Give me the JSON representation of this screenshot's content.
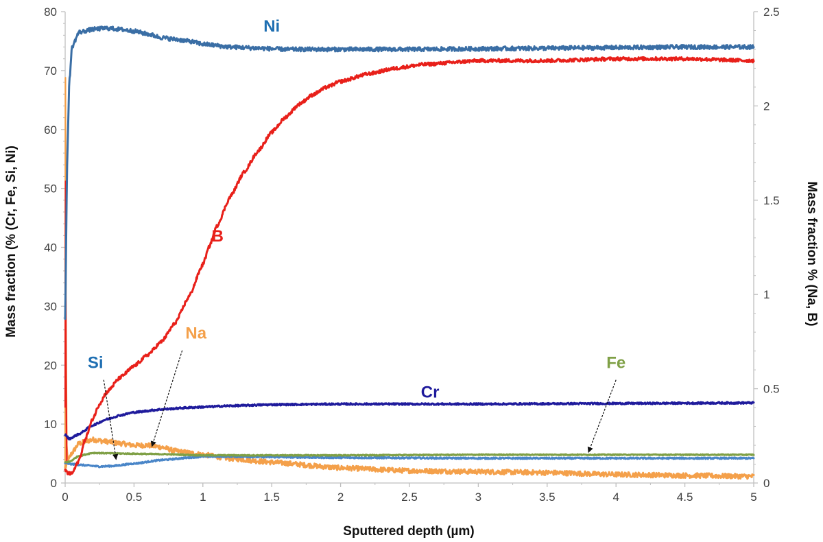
{
  "chart_data": {
    "type": "line",
    "xlabel": "Sputtered depth (µm)",
    "ylabel_left": "Mass fraction (% (Cr, Fe, Si, Ni)",
    "ylabel_right": "Mass fraction % (Na, B)",
    "xlim": [
      0,
      5
    ],
    "ylim_left": [
      0,
      80
    ],
    "ylim_right": [
      0,
      2.5
    ],
    "xticks": [
      "0",
      "0.5",
      "1",
      "1.5",
      "2",
      "2.5",
      "3",
      "3.5",
      "4",
      "4.5",
      "5"
    ],
    "yticks_left": [
      "0",
      "10",
      "20",
      "30",
      "40",
      "50",
      "60",
      "70",
      "80"
    ],
    "yticks_right": [
      "0",
      "0.5",
      "1",
      "1.5",
      "2",
      "2.5"
    ],
    "grid": false,
    "series": [
      {
        "name": "Ni",
        "axis": "left",
        "color": "#3A6EA5",
        "noise": 0.35,
        "points": [
          [
            0,
            28
          ],
          [
            0.015,
            55
          ],
          [
            0.03,
            68
          ],
          [
            0.05,
            74
          ],
          [
            0.1,
            76.5
          ],
          [
            0.2,
            77
          ],
          [
            0.3,
            77.2
          ],
          [
            0.4,
            77
          ],
          [
            0.5,
            76.7
          ],
          [
            0.6,
            76.2
          ],
          [
            0.7,
            75.6
          ],
          [
            0.8,
            75.3
          ],
          [
            0.9,
            75
          ],
          [
            1.0,
            74.5
          ],
          [
            1.2,
            74
          ],
          [
            1.4,
            73.8
          ],
          [
            1.6,
            73.6
          ],
          [
            2.0,
            73.6
          ],
          [
            2.5,
            73.6
          ],
          [
            3.0,
            73.7
          ],
          [
            3.5,
            73.8
          ],
          [
            4.0,
            73.9
          ],
          [
            4.5,
            74
          ],
          [
            5.0,
            74
          ]
        ]
      },
      {
        "name": "B",
        "axis": "right",
        "color": "#E8201A",
        "noise": 0.009,
        "points": [
          [
            0.0,
            0.07
          ],
          [
            0.02,
            0.05
          ],
          [
            0.05,
            0.05
          ],
          [
            0.1,
            0.12
          ],
          [
            0.15,
            0.24
          ],
          [
            0.2,
            0.34
          ],
          [
            0.25,
            0.42
          ],
          [
            0.3,
            0.48
          ],
          [
            0.4,
            0.56
          ],
          [
            0.5,
            0.62
          ],
          [
            0.6,
            0.68
          ],
          [
            0.7,
            0.75
          ],
          [
            0.8,
            0.85
          ],
          [
            0.9,
            0.99
          ],
          [
            1.0,
            1.16
          ],
          [
            1.05,
            1.26
          ],
          [
            1.1,
            1.36
          ],
          [
            1.2,
            1.52
          ],
          [
            1.3,
            1.65
          ],
          [
            1.4,
            1.76
          ],
          [
            1.5,
            1.86
          ],
          [
            1.6,
            1.94
          ],
          [
            1.7,
            2.01
          ],
          [
            1.8,
            2.06
          ],
          [
            1.9,
            2.1
          ],
          [
            2.0,
            2.13
          ],
          [
            2.2,
            2.17
          ],
          [
            2.4,
            2.2
          ],
          [
            2.6,
            2.22
          ],
          [
            3.0,
            2.24
          ],
          [
            3.5,
            2.24
          ],
          [
            4.0,
            2.25
          ],
          [
            4.5,
            2.25
          ],
          [
            5.0,
            2.24
          ]
        ]
      },
      {
        "name": "Cr",
        "axis": "left",
        "color": "#1F1B9C",
        "noise": 0.15,
        "points": [
          [
            0.0,
            8.2
          ],
          [
            0.03,
            7.5
          ],
          [
            0.1,
            8.3
          ],
          [
            0.2,
            9.8
          ],
          [
            0.3,
            10.8
          ],
          [
            0.4,
            11.5
          ],
          [
            0.5,
            12
          ],
          [
            0.7,
            12.5
          ],
          [
            0.9,
            12.8
          ],
          [
            1.0,
            12.9
          ],
          [
            1.2,
            13.1
          ],
          [
            1.5,
            13.3
          ],
          [
            2.0,
            13.4
          ],
          [
            3.0,
            13.4
          ],
          [
            4.0,
            13.5
          ],
          [
            5.0,
            13.6
          ]
        ]
      },
      {
        "name": "Fe",
        "axis": "left",
        "color": "#7FA046",
        "noise": 0.08,
        "points": [
          [
            0.0,
            3.5
          ],
          [
            0.03,
            3.6
          ],
          [
            0.1,
            4.6
          ],
          [
            0.2,
            5.1
          ],
          [
            0.4,
            5.0
          ],
          [
            0.7,
            4.9
          ],
          [
            1.0,
            4.7
          ],
          [
            2.0,
            4.7
          ],
          [
            3.0,
            4.8
          ],
          [
            4.0,
            4.8
          ],
          [
            5.0,
            4.8
          ]
        ]
      },
      {
        "name": "Si",
        "axis": "left",
        "color": "#4A86C8",
        "noise": 0.12,
        "points": [
          [
            0.0,
            3.4
          ],
          [
            0.05,
            3.2
          ],
          [
            0.15,
            3.0
          ],
          [
            0.25,
            2.8
          ],
          [
            0.35,
            2.9
          ],
          [
            0.5,
            3.3
          ],
          [
            0.7,
            3.9
          ],
          [
            0.9,
            4.3
          ],
          [
            1.0,
            4.5
          ],
          [
            1.2,
            4.5
          ],
          [
            1.5,
            4.4
          ],
          [
            2.0,
            4.3
          ],
          [
            3.0,
            4.2
          ],
          [
            4.0,
            4.2
          ],
          [
            5.0,
            4.2
          ]
        ]
      },
      {
        "name": "Na",
        "axis": "right",
        "color": "#F4A04A",
        "noise": 0.013,
        "points": [
          [
            0.0,
            0.08
          ],
          [
            0.05,
            0.16
          ],
          [
            0.1,
            0.21
          ],
          [
            0.2,
            0.23
          ],
          [
            0.3,
            0.22
          ],
          [
            0.4,
            0.21
          ],
          [
            0.5,
            0.2
          ],
          [
            0.6,
            0.2
          ],
          [
            0.7,
            0.19
          ],
          [
            0.8,
            0.17
          ],
          [
            0.9,
            0.16
          ],
          [
            1.0,
            0.15
          ],
          [
            1.2,
            0.13
          ],
          [
            1.5,
            0.11
          ],
          [
            2.0,
            0.08
          ],
          [
            2.5,
            0.065
          ],
          [
            3.0,
            0.06
          ],
          [
            3.5,
            0.055
          ],
          [
            4.0,
            0.045
          ],
          [
            4.5,
            0.04
          ],
          [
            5.0,
            0.035
          ]
        ]
      }
    ],
    "spikes": [
      {
        "series": "Na",
        "axis": "right",
        "color": "#F4A04A",
        "points": [
          [
            0.0,
            0.06
          ],
          [
            0.002,
            2.15
          ],
          [
            0.006,
            0.9
          ],
          [
            0.012,
            0.2
          ],
          [
            0.02,
            0.12
          ]
        ]
      },
      {
        "series": "B",
        "axis": "right",
        "color": "#E8201A",
        "points": [
          [
            0.0,
            0.4
          ],
          [
            0.003,
            1.6
          ],
          [
            0.006,
            0.6
          ],
          [
            0.012,
            0.1
          ]
        ]
      }
    ],
    "labels": [
      {
        "text": "Ni",
        "color": "#1F6FB2",
        "x": 1.5,
        "y": 74.5,
        "axis": "left",
        "anchor": "middle",
        "dy": -18
      },
      {
        "text": "B",
        "color": "#E8201A",
        "x": 1.15,
        "y": 41,
        "axis": "left",
        "anchor": "end",
        "dy": 0
      },
      {
        "text": "Cr",
        "color": "#1F1B9C",
        "x": 2.65,
        "y": 14.5,
        "axis": "left",
        "anchor": "middle",
        "dy": 0
      },
      {
        "text": "Fe",
        "color": "#7FA046",
        "x": 4.0,
        "y": 19.5,
        "axis": "left",
        "anchor": "middle",
        "dy": 0
      },
      {
        "text": "Si",
        "color": "#1F6FB2",
        "x": 0.22,
        "y": 19.5,
        "axis": "left",
        "anchor": "middle",
        "dy": 0
      },
      {
        "text": "Na",
        "color": "#F4A04A",
        "x": 0.95,
        "y": 24.5,
        "axis": "left",
        "anchor": "middle",
        "dy": 0
      }
    ],
    "arrows": [
      {
        "from": [
          0.28,
          17.5
        ],
        "to": [
          0.37,
          4.0
        ]
      },
      {
        "from": [
          0.85,
          22.5
        ],
        "to": [
          0.63,
          6.2
        ]
      },
      {
        "from": [
          4.0,
          17.5
        ],
        "to": [
          3.8,
          5.2
        ]
      }
    ]
  }
}
